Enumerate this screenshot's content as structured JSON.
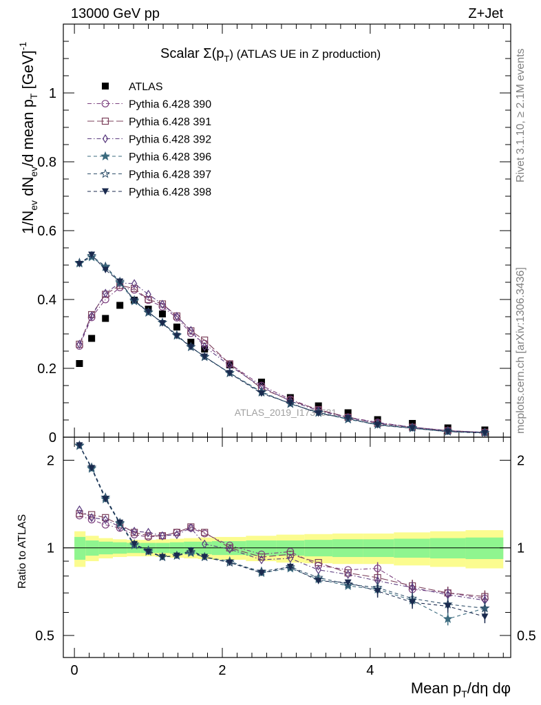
{
  "header": {
    "left": "13000 GeV pp",
    "right": "Z+Jet",
    "side_top": "Rivet 3.1.10, ≥ 2.1M events",
    "side_bottom": "mcplots.cern.ch [arXiv:1306.3436]"
  },
  "chart_data": [
    {
      "type": "line",
      "title": "Scalar Σ(p_T) (ATLAS UE in Z production)",
      "title_main": "Scalar Σ(p",
      "title_sub": "T",
      "title_tail": ") (ATLAS UE in Z production)",
      "watermark": "ATLAS_2019_I1736531",
      "ylabel": "1/N_ev dN_ev/d mean p_T [GeV]^-1",
      "ylabel_parts": {
        "a": "1/N",
        "a_sub": "ev",
        "b": " dN",
        "b_sub": "ev",
        "c": "/d mean p",
        "c_sub": "T",
        "d": " [GeV]",
        "d_sup": "-1"
      },
      "xlim": [
        -0.15,
        5.9
      ],
      "ylim": [
        0,
        1.2
      ],
      "yticks": [
        0,
        0.2,
        0.4,
        0.6,
        0.8,
        1
      ],
      "ytick_labels": [
        "0",
        "0.2",
        "0.4",
        "0.6",
        "0.8",
        "1"
      ],
      "x": [
        0.068,
        0.233,
        0.42,
        0.615,
        0.81,
        1.0,
        1.19,
        1.385,
        1.575,
        1.76,
        2.1,
        2.53,
        2.92,
        3.3,
        3.7,
        4.1,
        4.57,
        5.05,
        5.55
      ],
      "series": [
        {
          "name": "ATLAS",
          "color": "#000000",
          "marker": "filled-square",
          "dash": "",
          "values": [
            0.214,
            0.287,
            0.345,
            0.383,
            0.398,
            0.372,
            0.358,
            0.32,
            0.276,
            0.256,
            0.21,
            0.16,
            0.115,
            0.091,
            0.071,
            0.051,
            0.04,
            0.027,
            0.021
          ]
        },
        {
          "name": "Pythia 6.428 390",
          "color": "#7b3f7e",
          "marker": "open-circle",
          "dash": "6,3,1.5,3",
          "values": [
            0.265,
            0.348,
            0.4,
            0.435,
            0.428,
            0.398,
            0.379,
            0.347,
            0.302,
            0.272,
            0.213,
            0.15,
            0.11,
            0.079,
            0.058,
            0.043,
            0.029,
            0.019,
            0.014
          ]
        },
        {
          "name": "Pythia 6.428 391",
          "color": "#7b3f5a",
          "marker": "open-square",
          "dash": "10,4",
          "values": [
            0.27,
            0.356,
            0.415,
            0.441,
            0.432,
            0.4,
            0.387,
            0.352,
            0.309,
            0.282,
            0.213,
            0.142,
            0.107,
            0.08,
            0.058,
            0.04,
            0.029,
            0.019,
            0.014
          ]
        },
        {
          "name": "Pythia 6.428 392",
          "color": "#5a3a7e",
          "marker": "open-diamond",
          "dash": "6,3,1.5,3",
          "values": [
            0.27,
            0.352,
            0.418,
            0.448,
            0.446,
            0.415,
            0.386,
            0.351,
            0.31,
            0.263,
            0.208,
            0.146,
            0.105,
            0.077,
            0.057,
            0.041,
            0.029,
            0.019,
            0.014
          ]
        },
        {
          "name": "Pythia 6.428 396",
          "color": "#3a6a7e",
          "marker": "filled-star",
          "dash": "5,4",
          "values": [
            0.505,
            0.523,
            0.494,
            0.448,
            0.395,
            0.363,
            0.333,
            0.295,
            0.262,
            0.234,
            0.187,
            0.132,
            0.097,
            0.071,
            0.052,
            0.036,
            0.026,
            0.016,
            0.013
          ]
        },
        {
          "name": "Pythia 6.428 397",
          "color": "#2f4f6a",
          "marker": "open-star",
          "dash": "5,4",
          "values": [
            0.507,
            0.527,
            0.496,
            0.452,
            0.398,
            0.362,
            0.333,
            0.297,
            0.262,
            0.233,
            0.186,
            0.13,
            0.097,
            0.072,
            0.053,
            0.037,
            0.027,
            0.017,
            0.013
          ]
        },
        {
          "name": "Pythia 6.428 398",
          "color": "#1a2a4e",
          "marker": "filled-triangle-down",
          "dash": "5,4",
          "values": [
            0.503,
            0.53,
            0.486,
            0.452,
            0.397,
            0.364,
            0.331,
            0.294,
            0.262,
            0.234,
            0.186,
            0.127,
            0.099,
            0.069,
            0.055,
            0.035,
            0.026,
            0.016,
            0.012
          ]
        }
      ]
    },
    {
      "type": "line",
      "ylabel": "Ratio to ATLAS",
      "xlabel": "Mean p_T/dη dφ",
      "xlabel_parts": {
        "a": "Mean p",
        "a_sub": "T",
        "b": "/dη dφ"
      },
      "xlim": [
        -0.15,
        5.9
      ],
      "ylim": [
        0.42,
        2.4
      ],
      "yticks": [
        0.5,
        1,
        2
      ],
      "ytick_labels": [
        "0.5",
        "1",
        "2"
      ],
      "xticks": [
        0,
        2,
        4
      ],
      "xtick_labels": [
        "0",
        "2",
        "4"
      ],
      "bands": {
        "edges": [
          0,
          0.15,
          0.33,
          0.52,
          0.71,
          0.9,
          1.1,
          1.29,
          1.48,
          1.67,
          1.86,
          2.32,
          2.73,
          3.11,
          3.49,
          3.9,
          4.32,
          4.81,
          5.29,
          5.8
        ],
        "inner": [
          0.09,
          0.06,
          0.05,
          0.045,
          0.04,
          0.04,
          0.04,
          0.045,
          0.05,
          0.05,
          0.055,
          0.06,
          0.06,
          0.065,
          0.07,
          0.07,
          0.075,
          0.08,
          0.085
        ],
        "outer": [
          0.14,
          0.1,
          0.08,
          0.07,
          0.065,
          0.065,
          0.07,
          0.075,
          0.08,
          0.085,
          0.09,
          0.1,
          0.11,
          0.115,
          0.12,
          0.12,
          0.13,
          0.14,
          0.15
        ],
        "inner_color": "#8ff58f",
        "outer_color": "#fbfc8f"
      },
      "series": [
        {
          "name": "Pythia 6.428 390",
          "values": [
            1.29,
            1.25,
            1.2,
            1.17,
            1.11,
            1.09,
            1.1,
            1.13,
            1.17,
            1.12,
            1.02,
            0.95,
            0.97,
            0.87,
            0.84,
            0.85,
            0.72,
            0.7,
            0.67
          ]
        },
        {
          "name": "Pythia 6.428 391",
          "values": [
            1.31,
            1.3,
            1.27,
            1.2,
            1.13,
            1.1,
            1.1,
            1.13,
            1.18,
            1.13,
            1.0,
            0.93,
            0.95,
            0.89,
            0.82,
            0.79,
            0.74,
            0.7,
            0.68
          ]
        },
        {
          "name": "Pythia 6.428 392",
          "values": [
            1.35,
            1.27,
            1.25,
            1.18,
            1.14,
            1.13,
            1.1,
            1.11,
            1.17,
            1.03,
            0.99,
            0.91,
            0.92,
            0.84,
            0.81,
            0.77,
            0.73,
            0.69,
            0.66
          ]
        },
        {
          "name": "Pythia 6.428 396",
          "values": [
            2.24,
            1.87,
            1.47,
            1.21,
            1.02,
            0.97,
            0.93,
            0.94,
            0.96,
            0.93,
            0.9,
            0.82,
            0.85,
            0.78,
            0.74,
            0.72,
            0.66,
            0.57,
            0.62
          ]
        },
        {
          "name": "Pythia 6.428 397",
          "values": [
            2.25,
            1.89,
            1.49,
            1.22,
            1.03,
            0.98,
            0.93,
            0.94,
            0.97,
            0.93,
            0.89,
            0.83,
            0.86,
            0.79,
            0.75,
            0.73,
            0.67,
            0.64,
            0.62
          ]
        },
        {
          "name": "Pythia 6.428 398",
          "values": [
            2.25,
            1.88,
            1.47,
            1.22,
            1.03,
            0.97,
            0.93,
            0.94,
            0.98,
            0.93,
            0.89,
            0.82,
            0.86,
            0.77,
            0.76,
            0.71,
            0.65,
            0.63,
            0.58
          ]
        }
      ]
    }
  ]
}
